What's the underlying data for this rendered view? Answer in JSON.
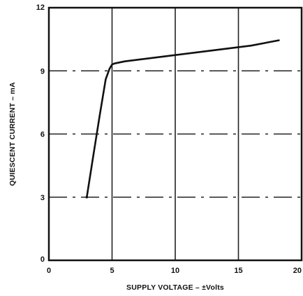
{
  "chart_data": {
    "type": "line",
    "title": "",
    "xlabel": "SUPPLY VOLTAGE – ±Volts",
    "ylabel": "QUIESCENT CURRENT – mA",
    "xlim": [
      0,
      20
    ],
    "ylim": [
      0,
      12
    ],
    "x_ticks": [
      0,
      5,
      10,
      15,
      20
    ],
    "y_ticks": [
      0,
      3,
      6,
      9,
      12
    ],
    "x_tick_labels": [
      "0",
      "5",
      "10",
      "15",
      "20"
    ],
    "y_tick_labels": [
      "0",
      "3",
      "6",
      "9",
      "12"
    ],
    "grid": true,
    "series": [
      {
        "x": [
          3.0,
          3.5,
          4.0,
          4.5,
          4.8,
          5.0,
          5.2,
          6.0,
          8.0,
          10.0,
          12.0,
          14.0,
          16.0,
          18.2
        ],
        "y": [
          3.0,
          4.9,
          6.8,
          8.6,
          9.1,
          9.3,
          9.35,
          9.45,
          9.6,
          9.75,
          9.9,
          10.05,
          10.2,
          10.45
        ]
      }
    ]
  }
}
